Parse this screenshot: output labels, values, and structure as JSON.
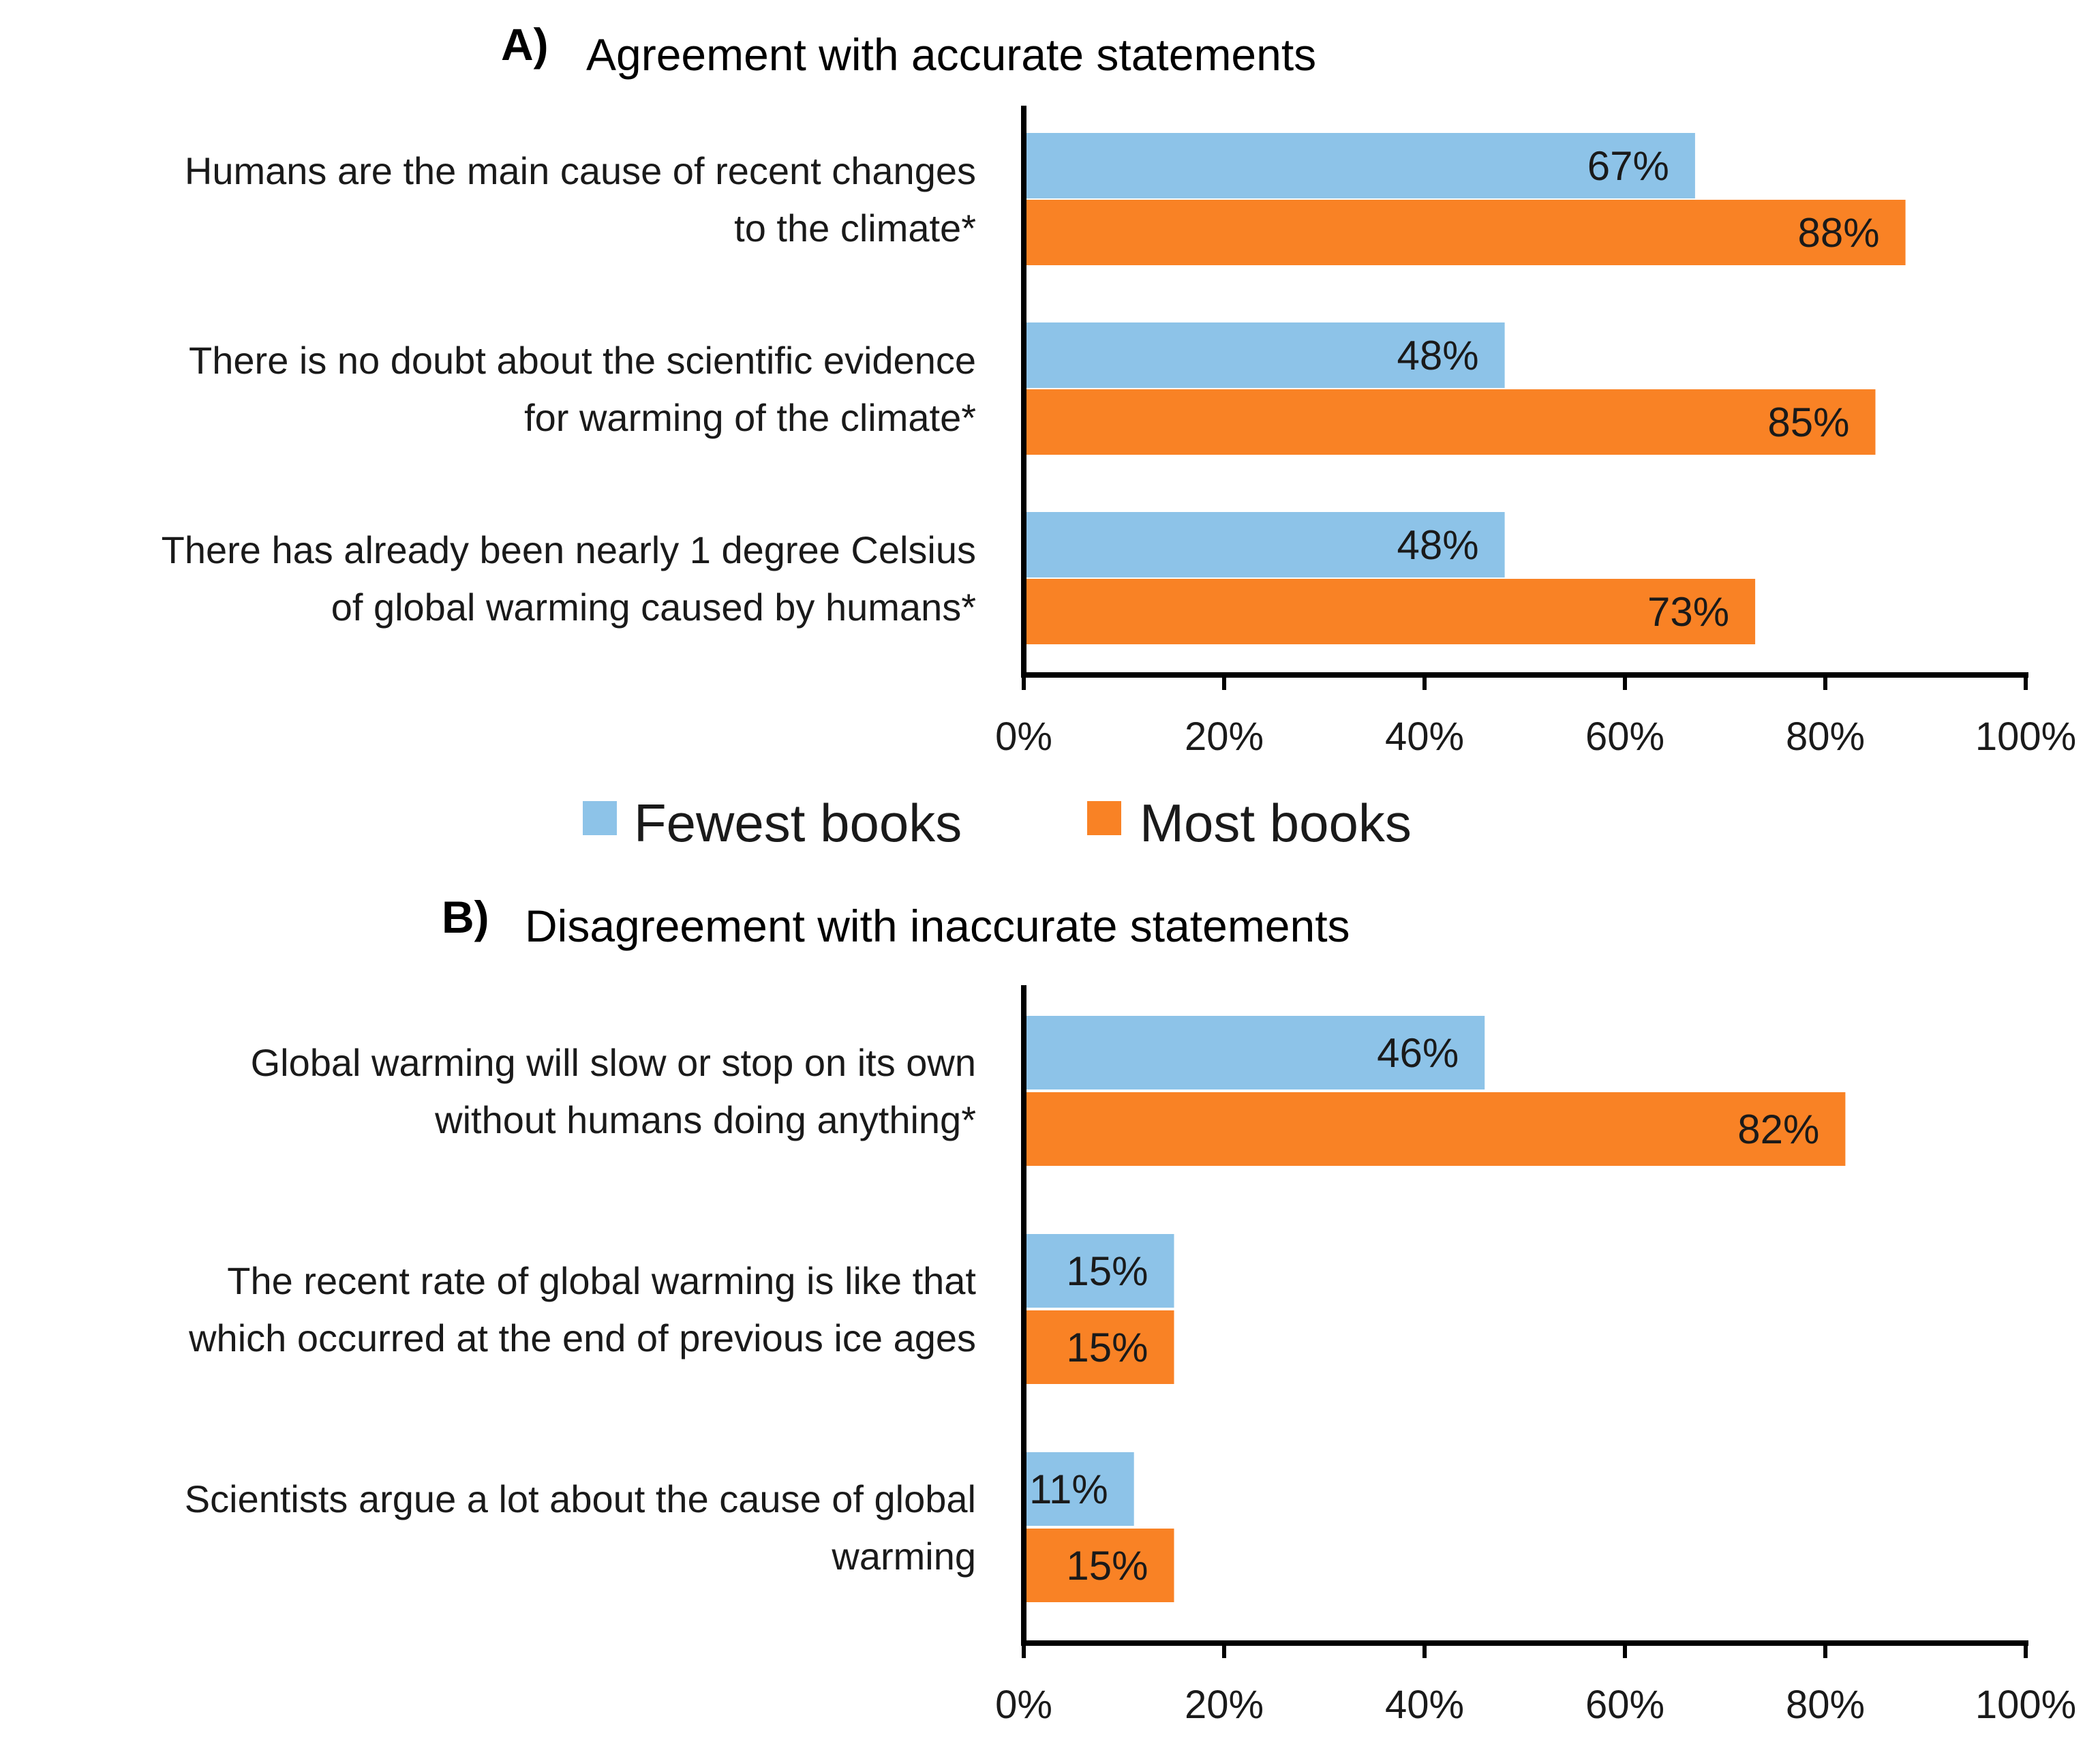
{
  "colors": {
    "fewest": "#8dc3e8",
    "most": "#f98225"
  },
  "legend": [
    {
      "key": "fewest",
      "label": "Fewest books"
    },
    {
      "key": "most",
      "label": "Most books"
    }
  ],
  "chart_data": [
    {
      "type": "bar",
      "orientation": "horizontal",
      "panel_letter": "A)",
      "title": "Agreement with accurate statements",
      "xlim": [
        0,
        100
      ],
      "xticks": [
        "0%",
        "20%",
        "40%",
        "60%",
        "80%",
        "100%"
      ],
      "legend_placement": "bottom",
      "categories": [
        [
          "Humans are the main cause of recent changes",
          "to the climate*"
        ],
        [
          "There is no doubt about the scientific evidence",
          "for warming of the climate*"
        ],
        [
          "There has already been nearly 1 degree Celsius",
          "of global warming caused by humans*"
        ]
      ],
      "series": [
        {
          "name": "Fewest books",
          "values": [
            67,
            48,
            48
          ],
          "labels": [
            "67%",
            "48%",
            "48%"
          ]
        },
        {
          "name": "Most books",
          "values": [
            88,
            85,
            73
          ],
          "labels": [
            "88%",
            "85%",
            "73%"
          ]
        }
      ]
    },
    {
      "type": "bar",
      "orientation": "horizontal",
      "panel_letter": "B)",
      "title": "Disagreement with inaccurate statements",
      "xlim": [
        0,
        100
      ],
      "xticks": [
        "0%",
        "20%",
        "40%",
        "60%",
        "80%",
        "100%"
      ],
      "categories": [
        [
          "Global warming will slow or stop on its own",
          "without humans doing anything*"
        ],
        [
          "The recent rate of global warming is like that",
          "which occurred at the end of previous ice ages"
        ],
        [
          "Scientists argue a lot about the cause of global",
          "warming"
        ]
      ],
      "series": [
        {
          "name": "Fewest books",
          "values": [
            46,
            15,
            11
          ],
          "labels": [
            "46%",
            "15%",
            "11%"
          ]
        },
        {
          "name": "Most books",
          "values": [
            82,
            15,
            15
          ],
          "labels": [
            "82%",
            "15%",
            "15%"
          ]
        }
      ]
    }
  ]
}
